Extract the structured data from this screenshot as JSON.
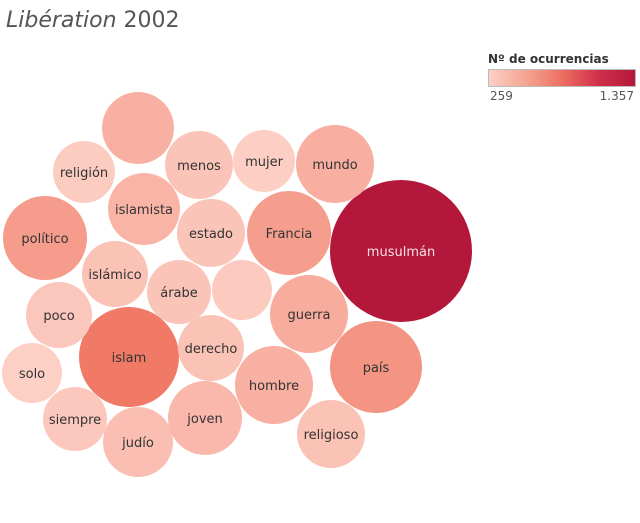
{
  "header": {
    "title_italic": "Libération",
    "title_rest": "2002"
  },
  "legend": {
    "title": "Nº de ocurrencias",
    "min_label": "259",
    "max_label": "1.357"
  },
  "chart_data": {
    "type": "bubble",
    "title": "Libération 2002",
    "color_scale": {
      "min": 259,
      "max": 1357,
      "low_color": "#fdd0c6",
      "high_color": "#b3173a"
    },
    "bubbles": [
      {
        "label": "musulmán",
        "value": 1357
      },
      {
        "label": "islam",
        "value": 690
      },
      {
        "label": "país",
        "value": 560
      },
      {
        "label": "político",
        "value": 520
      },
      {
        "label": "Francia",
        "value": 510
      },
      {
        "label": "",
        "value": 420
      },
      {
        "label": "mundo",
        "value": 430
      },
      {
        "label": "guerra",
        "value": 440
      },
      {
        "label": "hombre",
        "value": 420
      },
      {
        "label": "islamista",
        "value": 400
      },
      {
        "label": "judío",
        "value": 350
      },
      {
        "label": "joven",
        "value": 380
      },
      {
        "label": "estado",
        "value": 320
      },
      {
        "label": "derecho",
        "value": 330
      },
      {
        "label": "islámico",
        "value": 330
      },
      {
        "label": "árabe",
        "value": 320
      },
      {
        "label": "religioso",
        "value": 330
      },
      {
        "label": "",
        "value": 290
      },
      {
        "label": "menos",
        "value": 320
      },
      {
        "label": "poco",
        "value": 310
      },
      {
        "label": "siempre",
        "value": 300
      },
      {
        "label": "religión",
        "value": 280
      },
      {
        "label": "mujer",
        "value": 270
      },
      {
        "label": "solo",
        "value": 259
      }
    ]
  }
}
